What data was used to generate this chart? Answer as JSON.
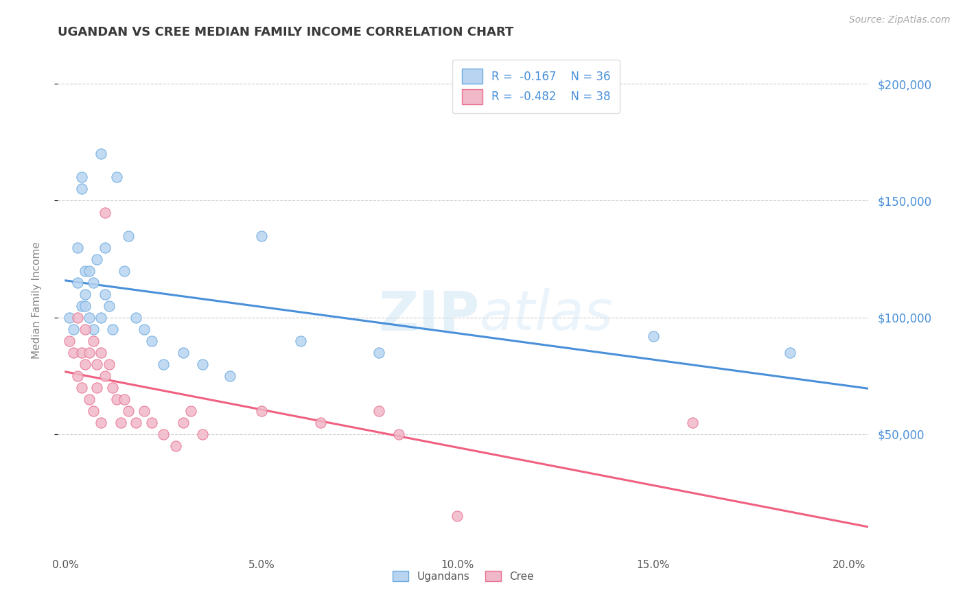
{
  "title": "UGANDAN VS CREE MEDIAN FAMILY INCOME CORRELATION CHART",
  "title_color": "#3a3a3a",
  "title_fontsize": 13,
  "source_text": "Source: ZipAtlas.com",
  "source_color": "#aaaaaa",
  "ylabel": "Median Family Income",
  "ylabel_color": "#888888",
  "xlim": [
    -0.002,
    0.205
  ],
  "ylim": [
    0,
    215000
  ],
  "yticks": [
    50000,
    100000,
    150000,
    200000
  ],
  "ytick_labels": [
    "$50,000",
    "$100,000",
    "$150,000",
    "$200,000"
  ],
  "ytick_color": "#4a90d9",
  "xticks": [
    0.0,
    0.05,
    0.1,
    0.15,
    0.2
  ],
  "xtick_labels": [
    "0.0%",
    "5.0%",
    "10.0%",
    "15.0%",
    "20.0%"
  ],
  "xtick_color": "#555555",
  "grid_color": "#cccccc",
  "background_color": "#ffffff",
  "ugandan_color": "#b8d4f0",
  "cree_color": "#f0b8c8",
  "ugandan_edge_color": "#6aaae0",
  "cree_edge_color": "#e87090",
  "ugandan_line_color": "#4a90d9",
  "cree_line_color": "#f06080",
  "legend_ugandan": "Ugandans",
  "legend_cree": "Cree",
  "R_ugandan": -0.167,
  "N_ugandan": 36,
  "R_cree": -0.482,
  "N_cree": 38,
  "ugandan_x": [
    0.001,
    0.002,
    0.003,
    0.003,
    0.004,
    0.004,
    0.004,
    0.005,
    0.005,
    0.005,
    0.006,
    0.006,
    0.007,
    0.007,
    0.008,
    0.009,
    0.009,
    0.01,
    0.01,
    0.011,
    0.012,
    0.013,
    0.015,
    0.016,
    0.018,
    0.02,
    0.022,
    0.025,
    0.03,
    0.035,
    0.042,
    0.05,
    0.06,
    0.08,
    0.15,
    0.185
  ],
  "ugandan_y": [
    100000,
    95000,
    115000,
    130000,
    105000,
    160000,
    155000,
    110000,
    120000,
    105000,
    100000,
    120000,
    95000,
    115000,
    125000,
    100000,
    170000,
    110000,
    130000,
    105000,
    95000,
    160000,
    120000,
    135000,
    100000,
    95000,
    90000,
    80000,
    85000,
    80000,
    75000,
    135000,
    90000,
    85000,
    92000,
    85000
  ],
  "cree_x": [
    0.001,
    0.002,
    0.003,
    0.003,
    0.004,
    0.004,
    0.005,
    0.005,
    0.006,
    0.006,
    0.007,
    0.007,
    0.008,
    0.008,
    0.009,
    0.009,
    0.01,
    0.01,
    0.011,
    0.012,
    0.013,
    0.014,
    0.015,
    0.016,
    0.018,
    0.02,
    0.022,
    0.025,
    0.028,
    0.03,
    0.032,
    0.035,
    0.05,
    0.065,
    0.08,
    0.085,
    0.1,
    0.16
  ],
  "cree_y": [
    90000,
    85000,
    100000,
    75000,
    85000,
    70000,
    95000,
    80000,
    85000,
    65000,
    90000,
    60000,
    80000,
    70000,
    85000,
    55000,
    75000,
    145000,
    80000,
    70000,
    65000,
    55000,
    65000,
    60000,
    55000,
    60000,
    55000,
    50000,
    45000,
    55000,
    60000,
    50000,
    60000,
    55000,
    60000,
    50000,
    15000,
    55000
  ]
}
